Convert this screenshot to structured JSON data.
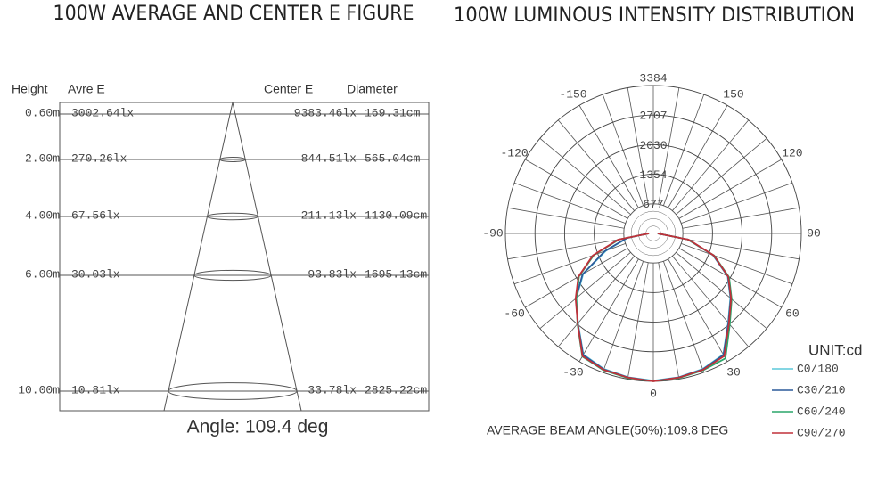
{
  "cone_figure": {
    "title": "100W AVERAGE AND CENTER E FIGURE",
    "headers": [
      "Height",
      "Avre E",
      "Center E",
      "Diameter"
    ],
    "rows": [
      {
        "height": "0.60m",
        "avre": "3002.64lx",
        "center": "9383.46lx",
        "diameter": "169.31cm"
      },
      {
        "height": "2.00m",
        "avre": "270.26lx",
        "center": "844.51lx",
        "diameter": "565.04cm"
      },
      {
        "height": "4.00m",
        "avre": "67.56lx",
        "center": "211.13lx",
        "diameter": "1130.09cm"
      },
      {
        "height": "6.00m",
        "avre": "30.03lx",
        "center": "93.83lx",
        "diameter": "1695.13cm"
      },
      {
        "height": "10.00m",
        "avre": "10.81lx",
        "center": "33.78lx",
        "diameter": "2825.22cm"
      }
    ],
    "angle": "Angle: 109.4 deg"
  },
  "chart_data": {
    "type": "polar",
    "title": "100W LUMINOUS INTENSITY DISTRIBUTION",
    "unit": "UNIT:cd",
    "footer": "AVERAGE BEAM ANGLE(50%):109.8 DEG",
    "x": [
      -90,
      -80,
      -70,
      -60,
      -50,
      -40,
      -30,
      -20,
      -10,
      0,
      10,
      20,
      30,
      40,
      50,
      60,
      70,
      80,
      90
    ],
    "xticks": [
      -150,
      -120,
      -90,
      -60,
      -30,
      0,
      30,
      60,
      90,
      120,
      150
    ],
    "ylim": [
      0,
      3384
    ],
    "yticks": [
      677,
      1354,
      2030,
      2707,
      3384
    ],
    "series": [
      {
        "name": "C0/180",
        "color": "#5cc8da",
        "values": [
          120,
          600,
          1150,
          1850,
          2300,
          2680,
          3200,
          3300,
          3340,
          3370,
          3340,
          3300,
          3200,
          2660,
          2300,
          1960,
          1450,
          800,
          100
        ]
      },
      {
        "name": "C30/210",
        "color": "#2b5a9a",
        "values": [
          120,
          620,
          1180,
          1870,
          2310,
          2690,
          3210,
          3310,
          3345,
          3375,
          3345,
          3310,
          3210,
          2670,
          2310,
          1970,
          1460,
          810,
          100
        ]
      },
      {
        "name": "C60/240",
        "color": "#2aa66a",
        "values": [
          100,
          800,
          1450,
          1960,
          2300,
          2700,
          3250,
          3330,
          3360,
          3380,
          3360,
          3330,
          3300,
          2720,
          2340,
          2000,
          1480,
          800,
          100
        ]
      },
      {
        "name": "C90/270",
        "color": "#c0303a",
        "values": [
          100,
          820,
          1470,
          1980,
          2320,
          2690,
          3240,
          3320,
          3350,
          3384,
          3350,
          3320,
          3240,
          2690,
          2320,
          1980,
          1470,
          820,
          100
        ]
      }
    ]
  }
}
